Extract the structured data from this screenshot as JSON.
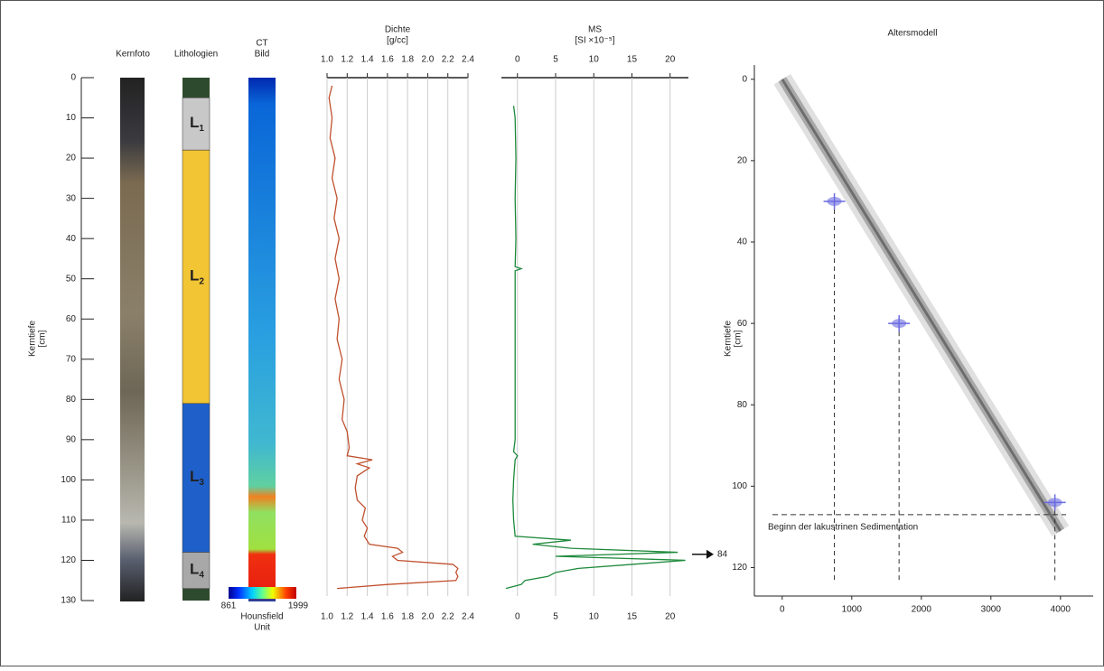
{
  "chart_data": [
    {
      "type": "core-log",
      "ylabel": [
        "Kerntiefe",
        "[cm]"
      ],
      "ylim": [
        0,
        130
      ],
      "yticks": [
        0,
        10,
        20,
        30,
        40,
        50,
        60,
        70,
        80,
        90,
        100,
        110,
        120,
        130
      ],
      "column_titles": {
        "photo": "Kernfoto",
        "lithology": "Lithologien",
        "ct": [
          "CT",
          "Bild"
        ]
      },
      "units": [
        {
          "label": "L",
          "sub": "1",
          "top": 5,
          "bottom": 18,
          "color": "#c8c8c8"
        },
        {
          "label": "L",
          "sub": "2",
          "top": 18,
          "bottom": 81,
          "color": "#f2c534"
        },
        {
          "label": "L",
          "sub": "3",
          "top": 81,
          "bottom": 118,
          "color": "#1f5fc9"
        },
        {
          "label": "L",
          "sub": "4",
          "top": 118,
          "bottom": 127,
          "color": "#a8a8a8"
        }
      ],
      "colorbar": {
        "min": 861,
        "max": 1999,
        "label": [
          "Hounsfield",
          "Unit"
        ]
      }
    },
    {
      "type": "profile",
      "title": [
        "Dichte",
        "[g/cc]"
      ],
      "color": "#c0502e",
      "xlim": [
        1.0,
        2.4
      ],
      "xticks": [
        {
          "value": 1.0,
          "label": "1.0"
        },
        1.2,
        1.4,
        1.6,
        1.8,
        {
          "value": 2.0,
          "label": "2.0"
        },
        2.2,
        2.4
      ],
      "depth": [
        2,
        5,
        10,
        15,
        20,
        25,
        30,
        35,
        40,
        45,
        50,
        55,
        60,
        65,
        70,
        75,
        80,
        85,
        88,
        92,
        94,
        95,
        96,
        97,
        99,
        102,
        105,
        107,
        110,
        112,
        114,
        116,
        117,
        118,
        119,
        120,
        121,
        122,
        123,
        124,
        125,
        126,
        127
      ],
      "values": [
        1.05,
        1.02,
        1.05,
        1.03,
        1.08,
        1.05,
        1.1,
        1.07,
        1.12,
        1.08,
        1.12,
        1.08,
        1.12,
        1.1,
        1.15,
        1.12,
        1.17,
        1.15,
        1.2,
        1.22,
        1.2,
        1.45,
        1.3,
        1.42,
        1.3,
        1.28,
        1.3,
        1.38,
        1.35,
        1.4,
        1.37,
        1.42,
        1.7,
        1.75,
        1.65,
        1.7,
        2.25,
        2.3,
        2.28,
        2.3,
        2.28,
        1.6,
        1.1
      ]
    },
    {
      "type": "profile",
      "title": [
        "MS",
        "[SI ×10⁻⁵]"
      ],
      "color": "#1e8a3c",
      "xlim": [
        -2.1,
        22.4
      ],
      "xticks": [
        0,
        5,
        10,
        15,
        20
      ],
      "depth": [
        7,
        10,
        20,
        30,
        40,
        47,
        47.5,
        48,
        60,
        70,
        80,
        90,
        93,
        94,
        95,
        100,
        105,
        110,
        114,
        115,
        116,
        117,
        118,
        119,
        120,
        121,
        122,
        123,
        124,
        125,
        126,
        127
      ],
      "values": [
        -0.5,
        -0.3,
        -0.2,
        -0.3,
        -0.2,
        -0.3,
        0.5,
        -0.3,
        -0.3,
        -0.3,
        -0.3,
        -0.3,
        -0.5,
        0,
        -0.3,
        -0.5,
        -0.6,
        -0.5,
        -0.3,
        7,
        2,
        7,
        21,
        5,
        22,
        15,
        8,
        5,
        4,
        1,
        0.5,
        -1.5
      ],
      "annotation": {
        "text": "84",
        "depth": 118.5
      }
    },
    {
      "type": "age-model",
      "title": "Altersmodell",
      "ylabel": [
        "Kerntiefe",
        "[cm]"
      ],
      "xlim": [
        -400,
        4470
      ],
      "ylim": [
        -3.5,
        127
      ],
      "xticks": [
        0,
        1000,
        2000,
        3000,
        4000
      ],
      "yticks": [
        0,
        20,
        40,
        60,
        80,
        100,
        120
      ],
      "model": {
        "x": [
          0,
          4000
        ],
        "values": [
          0,
          111
        ]
      },
      "dates": {
        "x": [
          750,
          1680,
          3920
        ],
        "values": [
          30,
          60,
          104
        ],
        "color": "#6a6ae0"
      },
      "boundary": {
        "depth": 107,
        "label": "Beginn der lakustrinen Sedimentation"
      }
    }
  ]
}
